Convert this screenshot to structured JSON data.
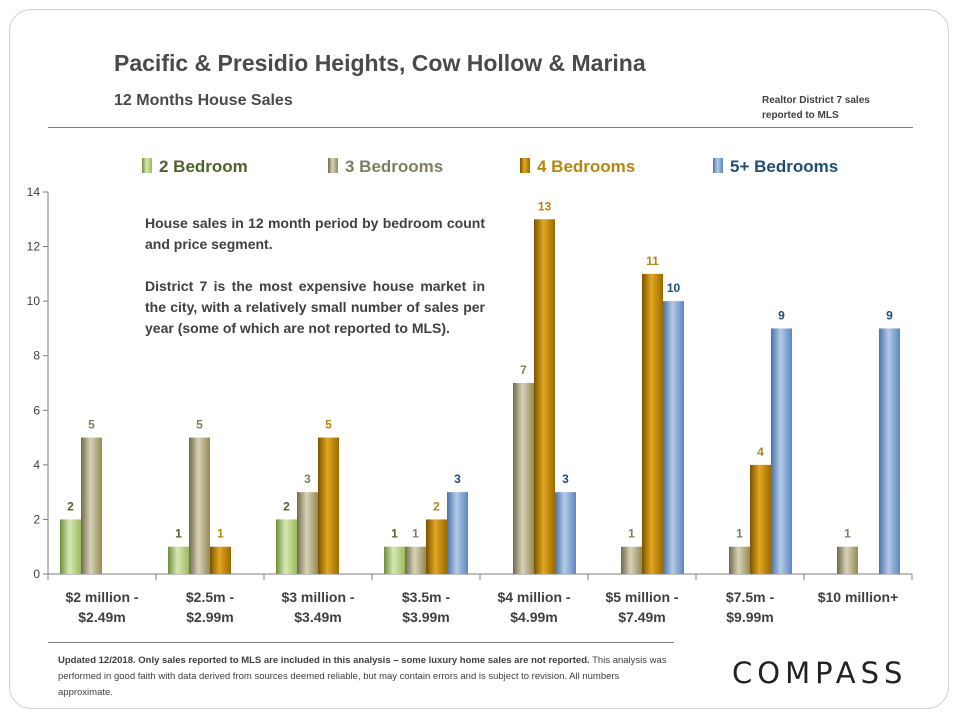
{
  "header": {
    "title": "Pacific & Presidio Heights, Cow Hollow & Marina",
    "subtitle": "12 Months House Sales",
    "source_line1": "Realtor District 7 sales",
    "source_line2": "reported to MLS"
  },
  "annotation": {
    "p1": "House sales in 12 month period by bedroom count and price segment.",
    "p2": "District 7 is the most expensive house market in the city, with a relatively small number of sales per year (some of which are not reported to MLS)."
  },
  "footer": {
    "bold": "Updated 12/2018. Only sales reported to MLS are included in this analysis – some luxury home sales are not reported.",
    "rest": " This analysis was performed in good faith with data derived from sources deemed reliable, but may contain errors and is subject to revision. All numbers approximate."
  },
  "brand": {
    "logo_text": "COMPASS"
  },
  "chart_data": {
    "type": "bar",
    "title": "Pacific & Presidio Heights, Cow Hollow & Marina",
    "subtitle": "12 Months House Sales",
    "xlabel": "",
    "ylabel": "",
    "ylim": [
      0,
      14
    ],
    "yticks": [
      "0",
      "2",
      "4",
      "6",
      "8",
      "10",
      "12",
      "14"
    ],
    "grid": false,
    "legend_position": "top",
    "categories": [
      [
        "$2 million -",
        "$2.49m"
      ],
      [
        "$2.5m -",
        "$2.99m"
      ],
      [
        "$3 million -",
        "$3.49m"
      ],
      [
        "$3.5m -",
        "$3.99m"
      ],
      [
        "$4 million -",
        "$4.99m"
      ],
      [
        "$5 million -",
        "$7.49m"
      ],
      [
        "$7.5m -",
        "$9.99m"
      ],
      [
        "$10 million+"
      ]
    ],
    "series": [
      {
        "name": "2 Bedroom",
        "color": "#9bbb59",
        "label_color": "#4f6228",
        "values": [
          2,
          1,
          2,
          1,
          null,
          null,
          null,
          null
        ]
      },
      {
        "name": "3 Bedrooms",
        "color": "#948a54",
        "label_color": "#7f7f5f",
        "values": [
          5,
          5,
          3,
          1,
          7,
          1,
          1,
          1
        ]
      },
      {
        "name": "4 Bedrooms",
        "color": "#b8860b",
        "label_color": "#b8860b",
        "values": [
          null,
          1,
          5,
          2,
          13,
          11,
          4,
          null
        ]
      },
      {
        "name": "5+ Bedrooms",
        "color": "#4f81bd",
        "label_color": "#1f4e79",
        "values": [
          null,
          null,
          null,
          3,
          3,
          10,
          9,
          9
        ]
      }
    ],
    "legend_text_colors": [
      "#4f6228",
      "#7f7f5f",
      "#b8860b",
      "#1f4e79"
    ]
  }
}
